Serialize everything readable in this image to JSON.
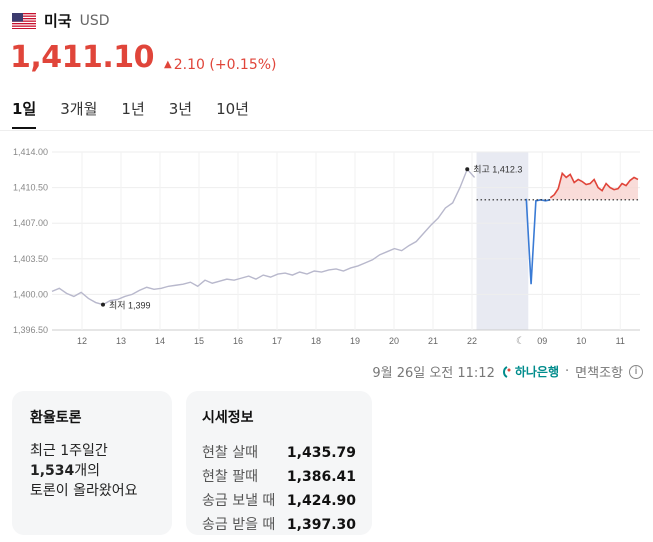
{
  "header": {
    "country": "미국",
    "currency": "USD"
  },
  "price": {
    "value": "1,411.10",
    "change": "2.10 (+0.15%)",
    "direction_color": "#e0453a"
  },
  "tabs": [
    {
      "label": "1일",
      "active": true
    },
    {
      "label": "3개월",
      "active": false
    },
    {
      "label": "1년",
      "active": false
    },
    {
      "label": "3년",
      "active": false
    },
    {
      "label": "10년",
      "active": false
    }
  ],
  "chart_data": {
    "type": "line",
    "yticks": [
      "1,414.00",
      "1,410.50",
      "1,407.00",
      "1,403.50",
      "1,400.00",
      "1,396.50"
    ],
    "ylim": [
      1396.5,
      1414.0
    ],
    "xticks": [
      "12",
      "13",
      "14",
      "15",
      "16",
      "17",
      "18",
      "19",
      "20",
      "21",
      "22",
      "09",
      "10",
      "11"
    ],
    "annotations": {
      "high": "최고 1,412.3",
      "low": "최저 1,399"
    },
    "series": [
      {
        "color": "#b8b8cc",
        "values": [
          1400.3,
          1400.6,
          1400.1,
          1399.8,
          1400.2,
          1399.6,
          1399.2,
          1399.0,
          1399.4,
          1399.5,
          1399.8,
          1400.0,
          1400.4,
          1400.7,
          1400.5,
          1400.6,
          1400.8,
          1400.9,
          1401.0,
          1401.2,
          1400.8,
          1401.4,
          1401.1,
          1401.3,
          1401.5,
          1401.4,
          1401.6,
          1401.8,
          1401.5,
          1401.9,
          1401.7,
          1402.0,
          1402.1,
          1401.9,
          1402.2,
          1402.0,
          1402.3,
          1402.2,
          1402.4,
          1402.5,
          1402.3,
          1402.6,
          1402.8,
          1403.1,
          1403.4,
          1403.9,
          1404.2,
          1404.5,
          1404.3,
          1404.8,
          1405.2,
          1406.0,
          1406.8,
          1407.5,
          1408.5,
          1409.0,
          1410.5,
          1412.3,
          1411.5
        ]
      },
      {
        "color": "#3a7bd5",
        "values": [
          1409.4,
          1401.0,
          1409.2,
          1409.3,
          1409.2,
          1409.3
        ]
      },
      {
        "color": "#e0453a",
        "values": [
          1409.5,
          1409.8,
          1410.4,
          1411.9,
          1411.5,
          1411.8,
          1411.0,
          1411.3,
          1411.1,
          1410.8,
          1410.9,
          1411.3,
          1410.5,
          1410.2,
          1410.9,
          1410.5,
          1410.3,
          1410.4,
          1410.9,
          1410.7,
          1411.2,
          1411.5,
          1411.3
        ]
      }
    ],
    "baseline": 1409.3,
    "grid": true,
    "dark_icon": "moon-icon"
  },
  "source": {
    "timestamp": "9월 26일 오전 11:12",
    "bank": "하나은행",
    "note": "면책조항"
  },
  "discussion": {
    "title": "환율토론",
    "line1": "최근 1주일간",
    "count": "1,534",
    "count_suffix": "개의",
    "line3": "토론이 올라왔어요"
  },
  "rates": {
    "title": "시세정보",
    "items": [
      {
        "label": "현찰 살때",
        "value": "1,435.79"
      },
      {
        "label": "현찰 팔때",
        "value": "1,386.41"
      },
      {
        "label": "송금 보낼 때",
        "value": "1,424.90"
      },
      {
        "label": "송금 받을 때",
        "value": "1,397.30"
      }
    ]
  }
}
